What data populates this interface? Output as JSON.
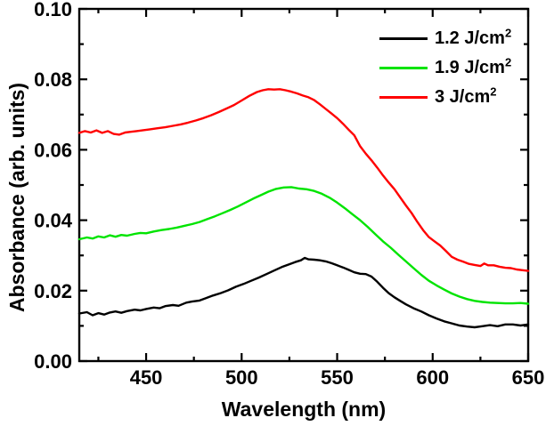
{
  "figure": {
    "background": "#ffffff",
    "frame_color": "#000000",
    "text_color": "#000000"
  },
  "chart_data": {
    "type": "line",
    "title": "",
    "xlabel": "Wavelength (nm)",
    "ylabel": "Absorbance (arb. units)",
    "xlim": [
      415,
      650
    ],
    "ylim": [
      0,
      0.1
    ],
    "grid": false,
    "legend_position": "top-right",
    "x_major_ticks": [
      450,
      500,
      550,
      600,
      650
    ],
    "x_minor_ticks": [
      425,
      475,
      525,
      575,
      625
    ],
    "x_tick_labels": [
      "450",
      "500",
      "550",
      "600",
      "650"
    ],
    "y_major_ticks": [
      0,
      0.02,
      0.04,
      0.06,
      0.08,
      0.1
    ],
    "y_minor_ticks": [
      0.01,
      0.03,
      0.05,
      0.07,
      0.09
    ],
    "y_tick_labels": [
      "0.00",
      "0.02",
      "0.04",
      "0.06",
      "0.08",
      "0.10"
    ],
    "series": [
      {
        "name": "1.2 J/cm2",
        "label_base": "1.2 J/cm",
        "label_sup": "2",
        "color": "#000000",
        "peak_wavelength_nm": 533,
        "peak_absorbance": 0.029,
        "points": [
          [
            415,
            0.0135
          ],
          [
            419,
            0.0139
          ],
          [
            422,
            0.013
          ],
          [
            425,
            0.0136
          ],
          [
            428,
            0.0132
          ],
          [
            431,
            0.0138
          ],
          [
            434,
            0.0141
          ],
          [
            437,
            0.0137
          ],
          [
            440,
            0.0142
          ],
          [
            444,
            0.0146
          ],
          [
            447,
            0.0144
          ],
          [
            450,
            0.0148
          ],
          [
            454,
            0.0152
          ],
          [
            457,
            0.015
          ],
          [
            460,
            0.0156
          ],
          [
            464,
            0.0159
          ],
          [
            467,
            0.0157
          ],
          [
            471,
            0.0166
          ],
          [
            474,
            0.0169
          ],
          [
            478,
            0.0172
          ],
          [
            481,
            0.0178
          ],
          [
            485,
            0.0186
          ],
          [
            489,
            0.0193
          ],
          [
            493,
            0.0201
          ],
          [
            497,
            0.0211
          ],
          [
            501,
            0.0219
          ],
          [
            505,
            0.0228
          ],
          [
            509,
            0.0237
          ],
          [
            513,
            0.0247
          ],
          [
            517,
            0.0257
          ],
          [
            521,
            0.0267
          ],
          [
            525,
            0.0275
          ],
          [
            528,
            0.0281
          ],
          [
            531,
            0.0286
          ],
          [
            533,
            0.0293
          ],
          [
            535,
            0.0289
          ],
          [
            538,
            0.0288
          ],
          [
            541,
            0.0286
          ],
          [
            544,
            0.0283
          ],
          [
            547,
            0.0278
          ],
          [
            550,
            0.0272
          ],
          [
            553,
            0.0266
          ],
          [
            556,
            0.0259
          ],
          [
            559,
            0.0252
          ],
          [
            562,
            0.0248
          ],
          [
            565,
            0.0247
          ],
          [
            568,
            0.024
          ],
          [
            571,
            0.0225
          ],
          [
            574,
            0.0208
          ],
          [
            577,
            0.0193
          ],
          [
            580,
            0.0181
          ],
          [
            583,
            0.0171
          ],
          [
            586,
            0.0161
          ],
          [
            590,
            0.015
          ],
          [
            594,
            0.0141
          ],
          [
            598,
            0.013
          ],
          [
            602,
            0.0121
          ],
          [
            606,
            0.0113
          ],
          [
            610,
            0.0107
          ],
          [
            614,
            0.0101
          ],
          [
            618,
            0.0098
          ],
          [
            622,
            0.0096
          ],
          [
            626,
            0.0099
          ],
          [
            630,
            0.0102
          ],
          [
            634,
            0.0099
          ],
          [
            638,
            0.0104
          ],
          [
            642,
            0.0104
          ],
          [
            646,
            0.0101
          ],
          [
            650,
            0.0104
          ]
        ]
      },
      {
        "name": "1.9 J/cm2",
        "label_base": "1.9 J/cm",
        "label_sup": "2",
        "color": "#00e400",
        "peak_wavelength_nm": 524,
        "peak_absorbance": 0.049,
        "points": [
          [
            415,
            0.0346
          ],
          [
            419,
            0.0351
          ],
          [
            422,
            0.0348
          ],
          [
            425,
            0.0354
          ],
          [
            428,
            0.0351
          ],
          [
            431,
            0.0357
          ],
          [
            434,
            0.0353
          ],
          [
            437,
            0.0358
          ],
          [
            440,
            0.0356
          ],
          [
            444,
            0.0361
          ],
          [
            447,
            0.0364
          ],
          [
            450,
            0.0363
          ],
          [
            454,
            0.0368
          ],
          [
            458,
            0.0372
          ],
          [
            462,
            0.0375
          ],
          [
            466,
            0.0379
          ],
          [
            470,
            0.0384
          ],
          [
            474,
            0.0389
          ],
          [
            478,
            0.0395
          ],
          [
            482,
            0.0403
          ],
          [
            486,
            0.0411
          ],
          [
            490,
            0.042
          ],
          [
            494,
            0.0429
          ],
          [
            498,
            0.0439
          ],
          [
            502,
            0.045
          ],
          [
            506,
            0.0461
          ],
          [
            510,
            0.0471
          ],
          [
            514,
            0.0481
          ],
          [
            518,
            0.0489
          ],
          [
            522,
            0.0493
          ],
          [
            526,
            0.0494
          ],
          [
            530,
            0.049
          ],
          [
            534,
            0.0488
          ],
          [
            538,
            0.0483
          ],
          [
            542,
            0.0475
          ],
          [
            546,
            0.0464
          ],
          [
            550,
            0.045
          ],
          [
            554,
            0.0434
          ],
          [
            558,
            0.0417
          ],
          [
            562,
            0.04
          ],
          [
            566,
            0.0381
          ],
          [
            570,
            0.036
          ],
          [
            574,
            0.034
          ],
          [
            578,
            0.0322
          ],
          [
            582,
            0.0302
          ],
          [
            586,
            0.0283
          ],
          [
            590,
            0.0264
          ],
          [
            594,
            0.0245
          ],
          [
            598,
            0.0228
          ],
          [
            602,
            0.0215
          ],
          [
            606,
            0.0203
          ],
          [
            610,
            0.0192
          ],
          [
            614,
            0.0183
          ],
          [
            618,
            0.0176
          ],
          [
            622,
            0.0171
          ],
          [
            626,
            0.0168
          ],
          [
            630,
            0.0166
          ],
          [
            634,
            0.0165
          ],
          [
            638,
            0.0164
          ],
          [
            642,
            0.0164
          ],
          [
            646,
            0.0165
          ],
          [
            650,
            0.0163
          ]
        ]
      },
      {
        "name": "3 J/cm2",
        "label_base": "3 J/cm",
        "label_sup": "2",
        "color": "#ff0000",
        "peak_wavelength_nm": 514,
        "peak_absorbance": 0.077,
        "points": [
          [
            415,
            0.0648
          ],
          [
            418,
            0.0653
          ],
          [
            421,
            0.0649
          ],
          [
            424,
            0.0655
          ],
          [
            427,
            0.0648
          ],
          [
            430,
            0.0653
          ],
          [
            433,
            0.0645
          ],
          [
            436,
            0.0643
          ],
          [
            439,
            0.0649
          ],
          [
            442,
            0.0651
          ],
          [
            445,
            0.0653
          ],
          [
            448,
            0.0655
          ],
          [
            452,
            0.0658
          ],
          [
            456,
            0.0661
          ],
          [
            460,
            0.0664
          ],
          [
            464,
            0.0668
          ],
          [
            468,
            0.0672
          ],
          [
            472,
            0.0677
          ],
          [
            476,
            0.0683
          ],
          [
            480,
            0.069
          ],
          [
            484,
            0.0698
          ],
          [
            488,
            0.0707
          ],
          [
            492,
            0.0717
          ],
          [
            496,
            0.0727
          ],
          [
            500,
            0.074
          ],
          [
            504,
            0.0753
          ],
          [
            508,
            0.0764
          ],
          [
            511,
            0.0769
          ],
          [
            514,
            0.0772
          ],
          [
            517,
            0.0771
          ],
          [
            520,
            0.0772
          ],
          [
            523,
            0.0769
          ],
          [
            526,
            0.0765
          ],
          [
            529,
            0.076
          ],
          [
            532,
            0.0754
          ],
          [
            535,
            0.0749
          ],
          [
            538,
            0.0741
          ],
          [
            541,
            0.0729
          ],
          [
            544,
            0.0716
          ],
          [
            547,
            0.0703
          ],
          [
            550,
            0.069
          ],
          [
            553,
            0.0674
          ],
          [
            556,
            0.0657
          ],
          [
            559,
            0.0641
          ],
          [
            562,
            0.061
          ],
          [
            565,
            0.0589
          ],
          [
            568,
            0.057
          ],
          [
            571,
            0.0549
          ],
          [
            574,
            0.0527
          ],
          [
            577,
            0.0507
          ],
          [
            580,
            0.0488
          ],
          [
            583,
            0.0465
          ],
          [
            586,
            0.0442
          ],
          [
            589,
            0.042
          ],
          [
            592,
            0.0395
          ],
          [
            595,
            0.0372
          ],
          [
            598,
            0.0352
          ],
          [
            601,
            0.034
          ],
          [
            604,
            0.0328
          ],
          [
            607,
            0.0312
          ],
          [
            610,
            0.0296
          ],
          [
            613,
            0.0288
          ],
          [
            616,
            0.0282
          ],
          [
            619,
            0.0276
          ],
          [
            622,
            0.0273
          ],
          [
            625,
            0.027
          ],
          [
            627,
            0.0277
          ],
          [
            629,
            0.0272
          ],
          [
            632,
            0.0272
          ],
          [
            635,
            0.0268
          ],
          [
            638,
            0.0265
          ],
          [
            641,
            0.0264
          ],
          [
            644,
            0.026
          ],
          [
            647,
            0.0258
          ],
          [
            650,
            0.0256
          ]
        ]
      }
    ]
  }
}
